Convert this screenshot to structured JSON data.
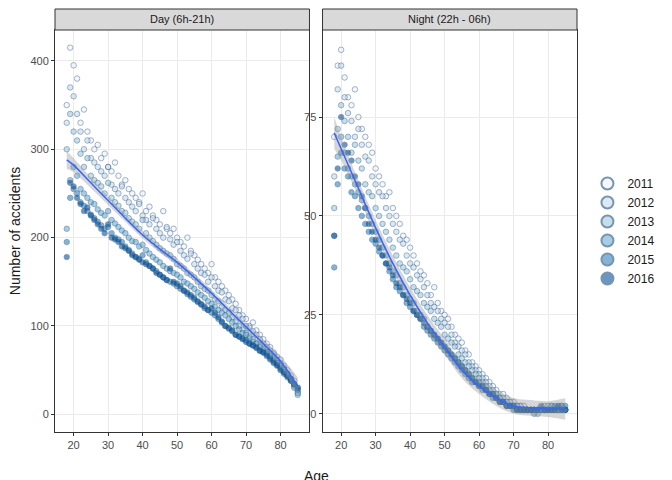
{
  "chart_data": [
    {
      "type": "scatter",
      "title": "Day (6h-21h)",
      "xlabel": "Age",
      "ylabel": "Number of accidents",
      "legend": "right",
      "grid": true,
      "xlim": [
        14.6,
        88.4
      ],
      "xticks": [
        20,
        30,
        40,
        50,
        60,
        70,
        80
      ],
      "ylim": [
        -20,
        435
      ],
      "yticks": [
        0,
        100,
        200,
        300,
        400
      ],
      "x": [
        18,
        19,
        20,
        21,
        22,
        23,
        24,
        25,
        26,
        27,
        28,
        29,
        30,
        31,
        32,
        33,
        34,
        35,
        36,
        37,
        38,
        39,
        40,
        41,
        42,
        43,
        44,
        45,
        46,
        47,
        48,
        49,
        50,
        51,
        52,
        53,
        54,
        55,
        56,
        57,
        58,
        59,
        60,
        61,
        62,
        63,
        64,
        65,
        66,
        67,
        68,
        69,
        70,
        71,
        72,
        73,
        74,
        75,
        76,
        77,
        78,
        79,
        80,
        81,
        82,
        83,
        84,
        85
      ],
      "series": [
        {
          "name": "2011",
          "color": "#eff3ff",
          "values": [
            350,
            415,
            395,
            380,
            330,
            345,
            320,
            310,
            300,
            305,
            290,
            295,
            280,
            275,
            285,
            270,
            260,
            265,
            255,
            250,
            245,
            240,
            250,
            230,
            235,
            225,
            220,
            215,
            230,
            210,
            205,
            210,
            200,
            195,
            190,
            200,
            185,
            180,
            175,
            170,
            165,
            160,
            170,
            155,
            150,
            145,
            140,
            135,
            130,
            125,
            118,
            112,
            108,
            100,
            104,
            95,
            90,
            85,
            80,
            76,
            70,
            65,
            62,
            55,
            50,
            44,
            38,
            30
          ]
        },
        {
          "name": "2012",
          "color": "#c6dbef",
          "values": [
            330,
            370,
            360,
            340,
            320,
            300,
            310,
            290,
            285,
            280,
            275,
            270,
            280,
            260,
            255,
            250,
            258,
            245,
            240,
            235,
            230,
            238,
            225,
            220,
            215,
            222,
            210,
            205,
            200,
            212,
            198,
            192,
            195,
            185,
            180,
            176,
            182,
            170,
            165,
            160,
            158,
            150,
            155,
            145,
            140,
            138,
            130,
            128,
            120,
            118,
            112,
            108,
            100,
            98,
            94,
            90,
            85,
            80,
            76,
            72,
            68,
            62,
            58,
            52,
            46,
            40,
            34,
            26
          ]
        },
        {
          "name": "2013",
          "color": "#9ecae1",
          "values": [
            300,
            340,
            320,
            310,
            295,
            280,
            290,
            270,
            265,
            262,
            258,
            250,
            262,
            245,
            240,
            236,
            230,
            228,
            222,
            218,
            215,
            210,
            220,
            205,
            200,
            196,
            192,
            188,
            185,
            182,
            180,
            176,
            170,
            168,
            165,
            160,
            158,
            155,
            150,
            145,
            142,
            140,
            135,
            130,
            128,
            122,
            118,
            115,
            110,
            105,
            100,
            96,
            92,
            88,
            85,
            80,
            78,
            74,
            70,
            68,
            64,
            58,
            55,
            50,
            45,
            40,
            32,
            22
          ]
        },
        {
          "name": "2014",
          "color": "#6baed6",
          "values": [
            210,
            265,
            280,
            270,
            255,
            250,
            245,
            240,
            238,
            232,
            228,
            225,
            230,
            220,
            216,
            212,
            208,
            205,
            200,
            196,
            195,
            190,
            192,
            186,
            182,
            178,
            175,
            172,
            168,
            165,
            162,
            160,
            158,
            155,
            150,
            148,
            145,
            142,
            138,
            135,
            132,
            128,
            125,
            122,
            118,
            115,
            112,
            108,
            104,
            100,
            96,
            92,
            90,
            86,
            82,
            80,
            76,
            72,
            70,
            66,
            62,
            58,
            54,
            48,
            44,
            38,
            30,
            24
          ]
        },
        {
          "name": "2015",
          "color": "#3182bd",
          "values": [
            195,
            245,
            255,
            250,
            240,
            236,
            230,
            226,
            222,
            218,
            214,
            210,
            212,
            205,
            200,
            198,
            195,
            190,
            186,
            182,
            178,
            176,
            180,
            172,
            168,
            165,
            162,
            158,
            155,
            152,
            150,
            148,
            145,
            142,
            140,
            136,
            133,
            130,
            127,
            124,
            120,
            118,
            115,
            112,
            108,
            104,
            100,
            97,
            94,
            90,
            88,
            86,
            84,
            80,
            78,
            76,
            72,
            70,
            68,
            64,
            60,
            56,
            52,
            48,
            44,
            40,
            34,
            28
          ]
        },
        {
          "name": "2016",
          "color": "#08519c",
          "values": [
            178,
            262,
            258,
            245,
            238,
            230,
            234,
            225,
            220,
            215,
            210,
            205,
            215,
            200,
            198,
            195,
            190,
            188,
            185,
            180,
            178,
            175,
            172,
            170,
            168,
            165,
            160,
            158,
            155,
            152,
            165,
            150,
            148,
            145,
            140,
            138,
            135,
            132,
            128,
            125,
            122,
            118,
            120,
            115,
            110,
            105,
            100,
            98,
            95,
            90,
            88,
            85,
            82,
            80,
            78,
            75,
            72,
            70,
            66,
            62,
            58,
            55,
            50,
            46,
            42,
            38,
            34,
            30
          ]
        }
      ],
      "trend": {
        "color": "#3366FF",
        "x": [
          18,
          20,
          25,
          30,
          35,
          40,
          45,
          50,
          55,
          60,
          65,
          70,
          75,
          80,
          85
        ],
        "values": [
          288,
          282,
          262,
          242,
          222,
          203,
          187,
          172,
          155,
          137,
          118,
          99,
          80,
          60,
          32
        ],
        "lower": [
          278,
          274,
          256,
          237,
          218,
          199,
          183,
          168,
          151,
          133,
          114,
          95,
          75,
          54,
          22
        ],
        "upper": [
          298,
          290,
          268,
          247,
          226,
          207,
          191,
          176,
          159,
          141,
          122,
          103,
          85,
          66,
          42
        ]
      }
    },
    {
      "type": "scatter",
      "title": "Night (22h - 06h)",
      "grid": true,
      "xlim": [
        14.6,
        88.4
      ],
      "xticks": [
        20,
        30,
        40,
        50,
        60,
        70,
        80
      ],
      "ylim": [
        -4.6,
        97
      ],
      "yticks": [
        0,
        25,
        50,
        75
      ],
      "x": [
        18,
        19,
        20,
        21,
        22,
        23,
        24,
        25,
        26,
        27,
        28,
        29,
        30,
        31,
        32,
        33,
        34,
        35,
        36,
        37,
        38,
        39,
        40,
        41,
        42,
        43,
        44,
        45,
        46,
        47,
        48,
        49,
        50,
        51,
        52,
        53,
        54,
        55,
        56,
        57,
        58,
        59,
        60,
        61,
        62,
        63,
        64,
        65,
        66,
        67,
        68,
        69,
        70,
        71,
        72,
        73,
        74,
        75,
        76,
        77,
        78,
        79,
        80,
        81,
        82,
        83,
        84,
        85
      ],
      "series": [
        {
          "name": "2011",
          "color": "#eff3ff",
          "values": [
            70,
            88,
            92,
            85,
            80,
            78,
            82,
            75,
            72,
            70,
            68,
            66,
            62,
            60,
            58,
            55,
            56,
            52,
            50,
            48,
            45,
            44,
            42,
            40,
            38,
            36,
            35,
            33,
            30,
            32,
            28,
            26,
            25,
            24,
            22,
            20,
            19,
            18,
            16,
            15,
            13,
            12,
            11,
            10,
            9,
            8,
            7,
            6,
            5,
            5,
            4,
            3,
            3,
            2,
            2,
            2,
            1,
            1,
            1,
            1,
            1,
            1,
            1,
            2,
            1,
            1,
            1,
            1
          ]
        },
        {
          "name": "2012",
          "color": "#c6dbef",
          "values": [
            60,
            82,
            88,
            80,
            76,
            74,
            70,
            72,
            68,
            65,
            64,
            60,
            58,
            56,
            55,
            52,
            50,
            48,
            46,
            44,
            43,
            40,
            38,
            37,
            35,
            34,
            32,
            30,
            28,
            27,
            26,
            24,
            23,
            22,
            20,
            18,
            17,
            16,
            15,
            13,
            12,
            11,
            10,
            9,
            8,
            7,
            6,
            5,
            4,
            4,
            3,
            3,
            2,
            2,
            2,
            1,
            1,
            1,
            1,
            1,
            1,
            2,
            1,
            1,
            1,
            2,
            1,
            1
          ]
        },
        {
          "name": "2013",
          "color": "#9ecae1",
          "values": [
            52,
            72,
            78,
            74,
            70,
            66,
            68,
            64,
            62,
            58,
            56,
            55,
            52,
            50,
            48,
            46,
            44,
            42,
            40,
            38,
            37,
            36,
            34,
            32,
            31,
            30,
            28,
            27,
            26,
            24,
            23,
            22,
            20,
            19,
            18,
            17,
            15,
            14,
            13,
            12,
            11,
            10,
            9,
            8,
            7,
            6,
            5,
            5,
            4,
            3,
            3,
            2,
            2,
            2,
            1,
            1,
            1,
            1,
            1,
            0,
            1,
            1,
            2,
            1,
            1,
            1,
            2,
            1
          ]
        },
        {
          "name": "2014",
          "color": "#6baed6",
          "values": [
            45,
            65,
            70,
            66,
            62,
            60,
            58,
            56,
            54,
            52,
            50,
            48,
            46,
            44,
            42,
            40,
            38,
            36,
            35,
            33,
            32,
            30,
            29,
            28,
            26,
            25,
            24,
            22,
            21,
            20,
            19,
            18,
            17,
            16,
            15,
            14,
            13,
            12,
            11,
            10,
            9,
            8,
            8,
            7,
            6,
            5,
            5,
            4,
            3,
            3,
            2,
            2,
            2,
            1,
            1,
            1,
            1,
            1,
            0,
            1,
            1,
            1,
            1,
            2,
            1,
            1,
            2,
            1
          ]
        },
        {
          "name": "2015",
          "color": "#3182bd",
          "values": [
            37,
            58,
            66,
            62,
            60,
            56,
            55,
            52,
            50,
            48,
            46,
            44,
            43,
            41,
            40,
            38,
            36,
            34,
            32,
            31,
            30,
            28,
            27,
            26,
            25,
            24,
            22,
            21,
            20,
            19,
            18,
            17,
            16,
            15,
            14,
            13,
            12,
            11,
            10,
            9,
            8,
            8,
            7,
            6,
            6,
            5,
            4,
            4,
            3,
            3,
            2,
            2,
            1,
            1,
            1,
            1,
            1,
            1,
            1,
            1,
            1,
            1,
            1,
            1,
            2,
            1,
            1,
            2
          ]
        },
        {
          "name": "2016",
          "color": "#08519c",
          "values": [
            45,
            62,
            75,
            68,
            66,
            64,
            60,
            58,
            55,
            52,
            48,
            46,
            44,
            42,
            40,
            38,
            37,
            35,
            33,
            32,
            30,
            29,
            28,
            26,
            25,
            24,
            23,
            22,
            21,
            20,
            19,
            18,
            17,
            16,
            15,
            14,
            13,
            12,
            11,
            10,
            9,
            8,
            7,
            7,
            6,
            5,
            5,
            4,
            3,
            3,
            2,
            2,
            2,
            1,
            1,
            1,
            1,
            1,
            1,
            1,
            2,
            1,
            1,
            1,
            1,
            2,
            1,
            1
          ]
        }
      ],
      "trend": {
        "color": "#3366FF",
        "x": [
          18,
          20,
          25,
          30,
          35,
          40,
          45,
          50,
          55,
          60,
          65,
          70,
          75,
          80,
          85
        ],
        "values": [
          71,
          67,
          57,
          47,
          38,
          30,
          23,
          17,
          11,
          7,
          4,
          2,
          1.5,
          1.2,
          1.2
        ],
        "lower": [
          67,
          64,
          55,
          45,
          36,
          28,
          21,
          15,
          9,
          5,
          2,
          0,
          -0.5,
          -0.8,
          -1.5
        ],
        "upper": [
          75,
          70,
          59,
          49,
          40,
          32,
          25,
          19,
          13,
          9,
          6,
          4,
          3.5,
          3.2,
          3.9
        ]
      }
    }
  ]
}
